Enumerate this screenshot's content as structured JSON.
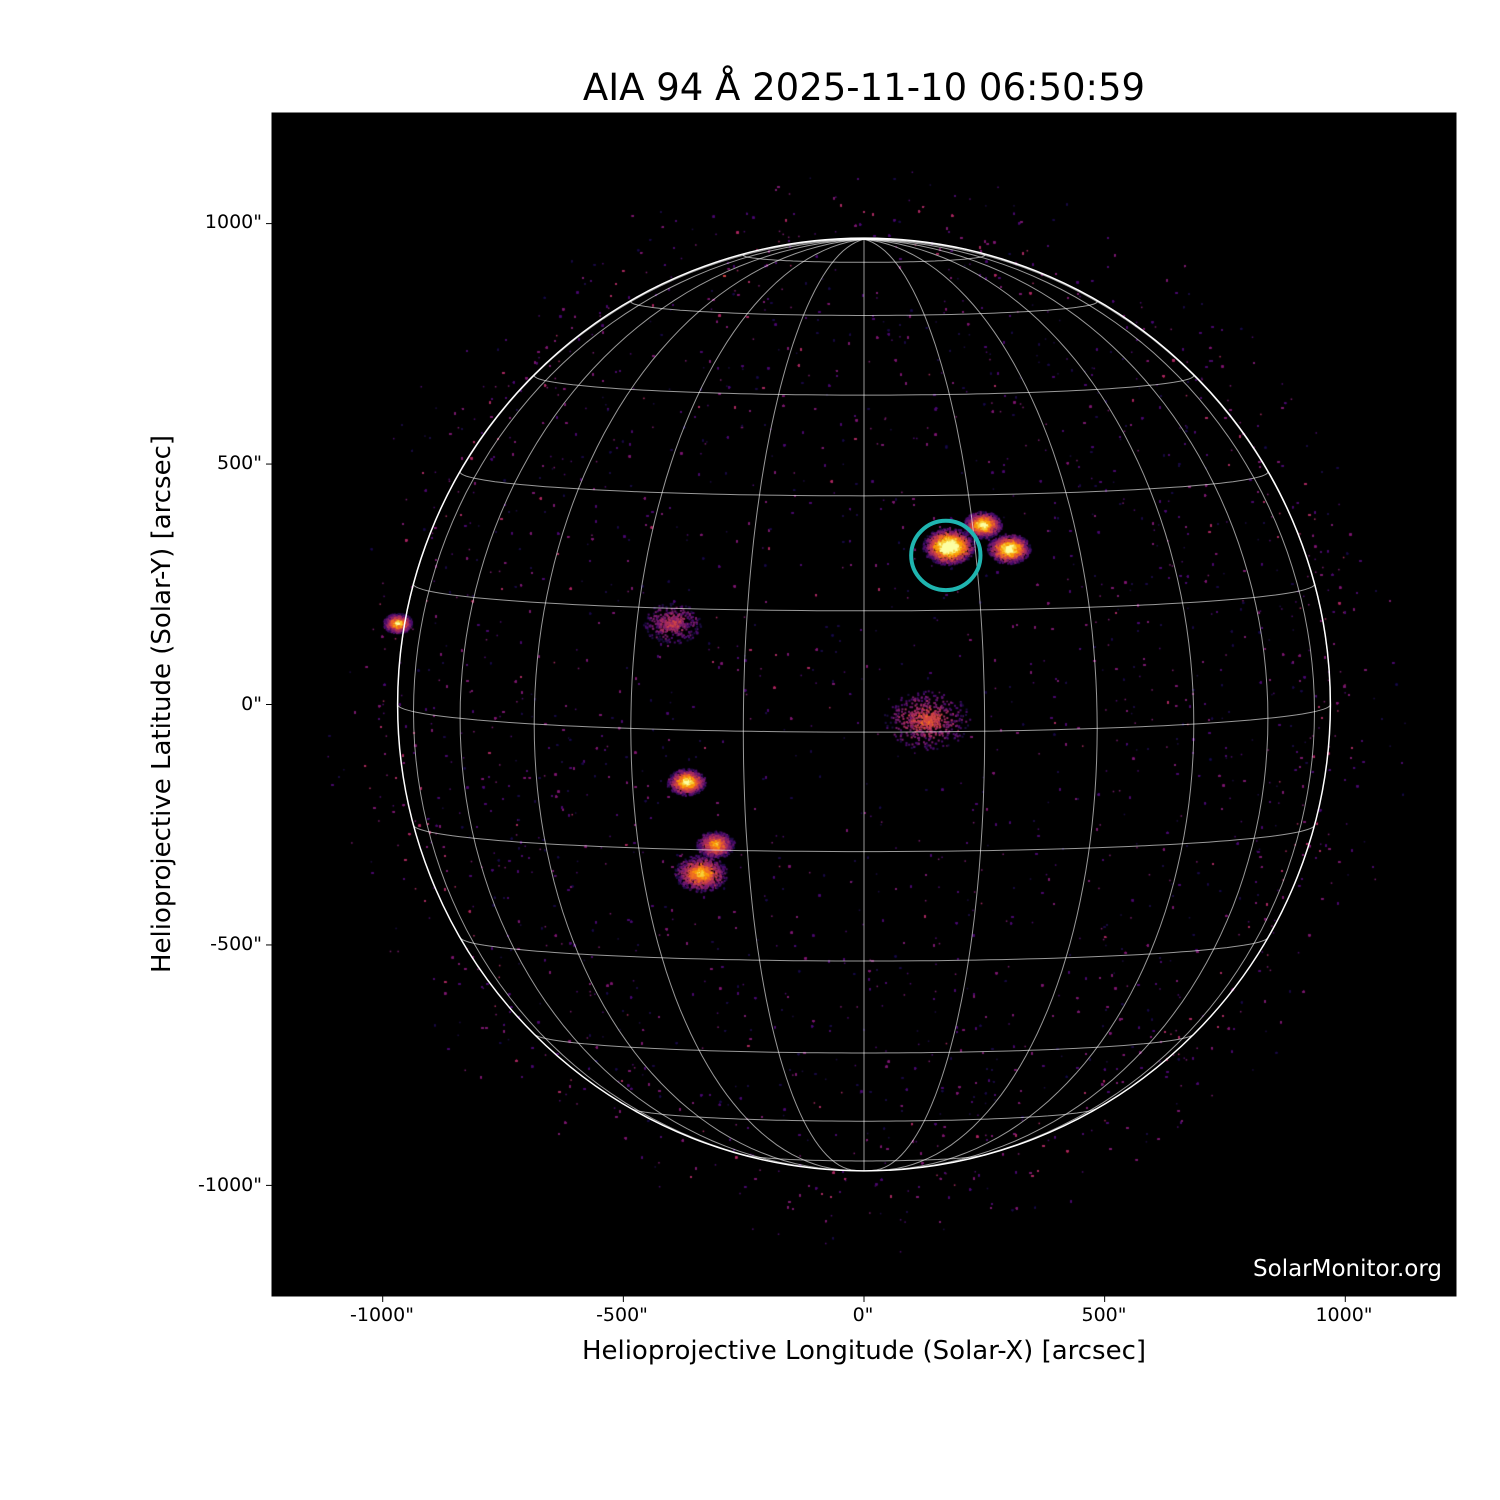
{
  "chart_data": {
    "type": "image",
    "title": "AIA 94 Å 2025-11-10 06:50:59",
    "xlabel": "Helioprojective Longitude (Solar-X) [arcsec]",
    "ylabel": "Helioprojective Latitude (Solar-Y) [arcsec]",
    "xlim": [
      -1230,
      1230
    ],
    "ylim": [
      -1230,
      1230
    ],
    "xticks": [
      -1000,
      -500,
      0,
      500,
      1000
    ],
    "xtick_labels": [
      "-1000\"",
      "-500\"",
      "0\"",
      "500\"",
      "1000\""
    ],
    "yticks": [
      1000,
      500,
      0,
      -500,
      -1000
    ],
    "ytick_labels": [
      "1000\"",
      "500\"",
      "0\"",
      "-500\"",
      "-1000\""
    ],
    "colormap": "inferno",
    "solar_radius_arcsec": 969,
    "b0_deg": 3.4,
    "grid_spacing_deg": 15,
    "grid_color": "#ffffff",
    "highlight_circle": {
      "center": [
        170,
        310
      ],
      "radius": 72,
      "color": "#1fb5b0"
    },
    "bright_regions": [
      {
        "center": [
          175,
          330
        ],
        "radius": 55,
        "intensity": 1.0
      },
      {
        "center": [
          300,
          325
        ],
        "radius": 45,
        "intensity": 0.85
      },
      {
        "center": [
          245,
          375
        ],
        "radius": 40,
        "intensity": 0.8
      },
      {
        "center": [
          -370,
          -160
        ],
        "radius": 40,
        "intensity": 0.8
      },
      {
        "center": [
          -340,
          -350
        ],
        "radius": 55,
        "intensity": 0.65
      },
      {
        "center": [
          -970,
          170
        ],
        "radius": 30,
        "intensity": 0.7
      },
      {
        "center": [
          130,
          -30
        ],
        "radius": 90,
        "intensity": 0.4
      },
      {
        "center": [
          -400,
          170
        ],
        "radius": 60,
        "intensity": 0.3
      },
      {
        "center": [
          -310,
          -290
        ],
        "radius": 40,
        "intensity": 0.6
      }
    ],
    "watermark": "SolarMonitor.org"
  }
}
